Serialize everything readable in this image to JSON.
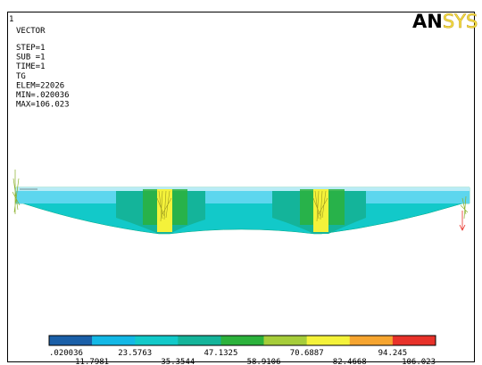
{
  "header": {
    "window_number": "1",
    "plot_type": "VECTOR",
    "info": [
      "STEP=1",
      "SUB =1",
      "TIME=1",
      "TG",
      "ELEM=22026",
      "MIN=.020036",
      "MAX=106.023"
    ]
  },
  "logo": {
    "left": "AN",
    "right": "SYS"
  },
  "legend": {
    "labels": [
      ".020036",
      "11.7981",
      "23.5763",
      "35.3544",
      "47.1325",
      "58.9106",
      "70.6887",
      "82.4668",
      "94.245",
      "106.023"
    ],
    "colors": [
      "#1a5fa8",
      "#13b8e6",
      "#12c9c9",
      "#14b49a",
      "#2cb23c",
      "#a6cd3a",
      "#f4f23a",
      "#f6a530",
      "#e8322a"
    ]
  }
}
